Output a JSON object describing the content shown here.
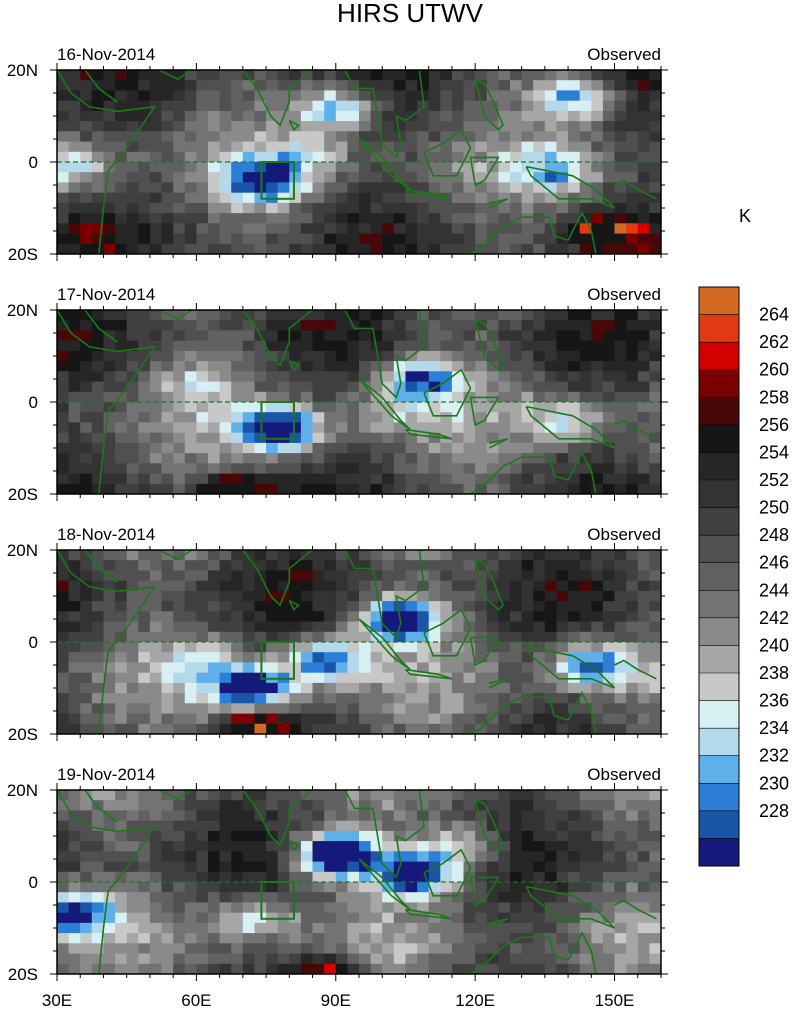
{
  "figure": {
    "title": "HIRS UTWV",
    "unit": "K",
    "colorbar": {
      "labels": [
        264,
        262,
        260,
        258,
        256,
        254,
        252,
        250,
        248,
        246,
        244,
        242,
        240,
        238,
        236,
        234,
        232,
        230,
        228
      ],
      "colors": [
        "#d26a21",
        "#e13a14",
        "#d40000",
        "#7a0000",
        "#480808",
        "#161616",
        "#262626",
        "#333333",
        "#404040",
        "#505050",
        "#616161",
        "#737373",
        "#8a8a8a",
        "#a6a6a6",
        "#c8c8c8",
        "#d8f0f4",
        "#b4d9ea",
        "#5fb0e8",
        "#2b7fd6",
        "#1a56a8",
        "#151a7a"
      ]
    },
    "lon_labels": [
      "30E",
      "60E",
      "90E",
      "120E",
      "150E"
    ],
    "lat_labels": [
      "20N",
      "0",
      "20S"
    ],
    "land_outline_color": "#1a7a1a",
    "box_region": {
      "lon": [
        74,
        81
      ],
      "lat": [
        -8,
        0
      ]
    }
  },
  "panels": [
    {
      "date": "16-Nov-2014",
      "label": "Observed"
    },
    {
      "date": "17-Nov-2014",
      "label": "Observed"
    },
    {
      "date": "18-Nov-2014",
      "label": "Observed"
    },
    {
      "date": "19-Nov-2014",
      "label": "Observed"
    }
  ]
}
